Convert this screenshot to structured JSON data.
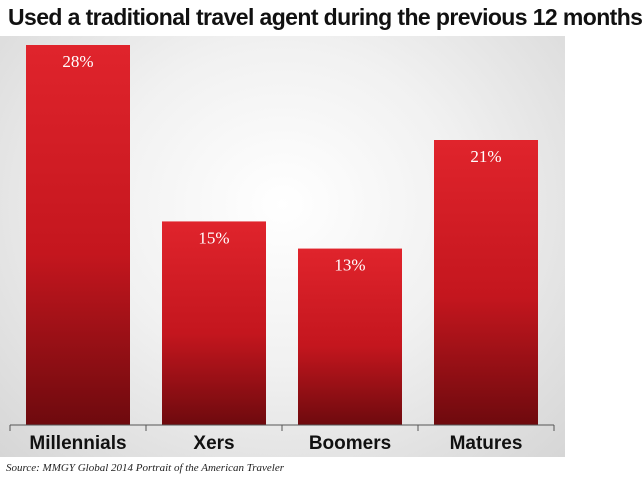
{
  "title": "Used a traditional travel agent during the previous 12 months",
  "source": "Source: MMGY Global 2014 Portrait of the American Traveler",
  "colors": {
    "bar_top": "#e0242c",
    "bar_bottom": "#6e0a0e",
    "value_label": "#ffffff",
    "axis": "#555555"
  },
  "chart_data": {
    "type": "bar",
    "title": "Used a traditional travel agent during the previous 12 months",
    "categories": [
      "Millennials",
      "Xers",
      "Boomers",
      "Matures"
    ],
    "values": [
      28,
      15,
      13,
      21
    ],
    "value_labels": [
      "28%",
      "15%",
      "13%",
      "21%"
    ],
    "unit": "%",
    "ylim": [
      0,
      28
    ],
    "xlabel": "",
    "ylabel": "",
    "grid": false,
    "legend": "none"
  }
}
